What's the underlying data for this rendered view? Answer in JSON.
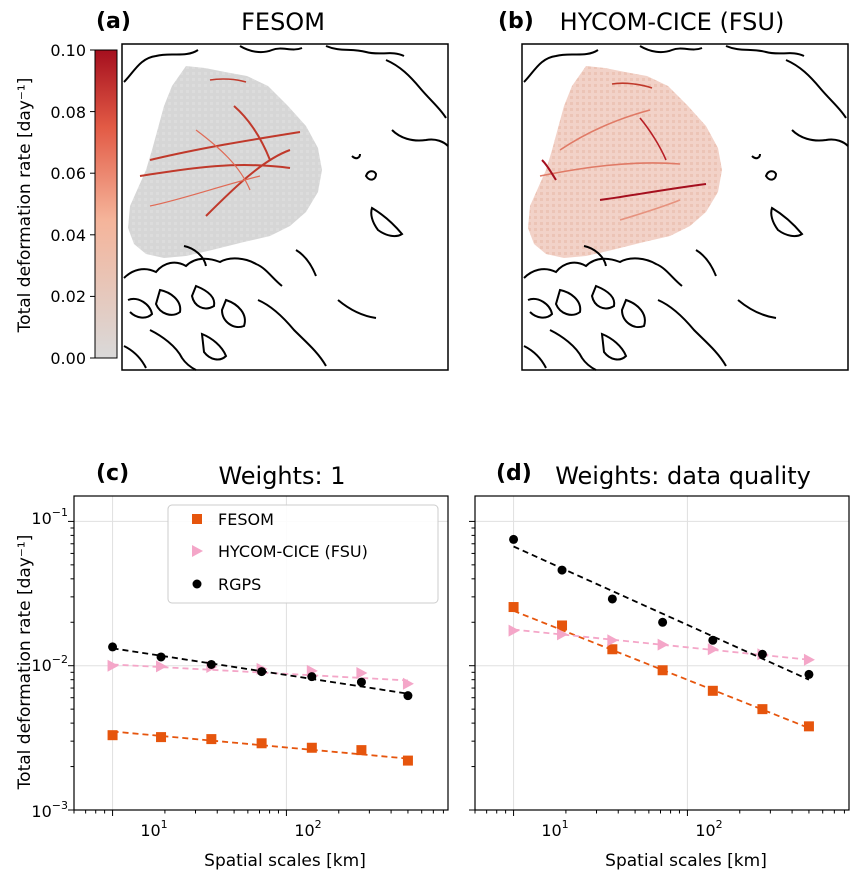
{
  "panels": {
    "a": {
      "letter": "(a)",
      "title": "FESOM"
    },
    "b": {
      "letter": "(b)",
      "title": "HYCOM-CICE (FSU)"
    },
    "c": {
      "letter": "(c)",
      "title": "Weights: 1"
    },
    "d": {
      "letter": "(d)",
      "title": "Weights: data quality"
    }
  },
  "colorbar": {
    "label": "Total deformation rate [day⁻¹]",
    "ticks": [
      "0.00",
      "0.02",
      "0.04",
      "0.06",
      "0.08",
      "0.10"
    ],
    "range": [
      0,
      0.1
    ],
    "colors": {
      "low": "#d9d9d9",
      "mid": "#f0a07f",
      "high": "#a50f1e"
    }
  },
  "axes_text": {
    "ylabel": "Total deformation rate [day⁻¹]",
    "xlabel": "Spatial scales [km]",
    "yticks": {
      "e-1": "10",
      "e-2": "10",
      "e-3": "10",
      "sup_m1": "−1",
      "sup_m2": "−2",
      "sup_m3": "−3"
    },
    "xticks": {
      "e1": "10",
      "e2": "10",
      "sup1": "1",
      "sup2": "2"
    }
  },
  "legend": [
    "FESOM",
    "HYCOM-CICE (FSU)",
    "RGPS"
  ],
  "series_colors": {
    "FESOM": "#e6550d",
    "HYCOM-CICE (FSU)": "#f4a6c8",
    "RGPS": "#000000"
  },
  "chart_data": [
    {
      "panel": "c",
      "type": "scatter",
      "title": "Weights: 1",
      "xlabel": "Spatial scales [km]",
      "ylabel": "Total deformation rate [day⁻¹]",
      "xscale": "log",
      "yscale": "log",
      "xlim": [
        6,
        850
      ],
      "ylim": [
        0.001,
        0.15
      ],
      "grid": true,
      "legend_position": "top-right",
      "x": [
        10,
        19,
        37,
        72,
        140,
        270,
        500
      ],
      "series": [
        {
          "name": "FESOM",
          "marker": "square",
          "values": [
            0.0033,
            0.0032,
            0.0031,
            0.0029,
            0.0027,
            0.0026,
            0.0022
          ],
          "fit": [
            0.0035,
            0.00227
          ]
        },
        {
          "name": "HYCOM-CICE (FSU)",
          "marker": "triangle-right",
          "values": [
            0.01,
            0.0099,
            0.0098,
            0.0095,
            0.0092,
            0.0089,
            0.0075
          ],
          "fit": [
            0.0102,
            0.0079
          ]
        },
        {
          "name": "RGPS",
          "marker": "circle",
          "values": [
            0.0135,
            0.0115,
            0.0102,
            0.0091,
            0.0084,
            0.0077,
            0.0062
          ],
          "fit": [
            0.0132,
            0.0064
          ]
        }
      ]
    },
    {
      "panel": "d",
      "type": "scatter",
      "title": "Weights: data quality",
      "xlabel": "Spatial scales [km]",
      "ylabel": "",
      "xscale": "log",
      "yscale": "log",
      "xlim": [
        6,
        850
      ],
      "ylim": [
        0.001,
        0.15
      ],
      "grid": true,
      "x": [
        10,
        19,
        37,
        72,
        140,
        270,
        500
      ],
      "series": [
        {
          "name": "FESOM",
          "marker": "square",
          "values": [
            0.0255,
            0.019,
            0.013,
            0.0093,
            0.0067,
            0.005,
            0.0038
          ],
          "fit": [
            0.024,
            0.0037
          ]
        },
        {
          "name": "HYCOM-CICE (FSU)",
          "marker": "triangle-right",
          "values": [
            0.0175,
            0.0165,
            0.015,
            0.014,
            0.013,
            0.012,
            0.011
          ],
          "fit": [
            0.0178,
            0.011
          ]
        },
        {
          "name": "RGPS",
          "marker": "circle",
          "values": [
            0.075,
            0.046,
            0.029,
            0.02,
            0.015,
            0.012,
            0.0087
          ],
          "fit": [
            0.067,
            0.008
          ]
        }
      ]
    }
  ]
}
